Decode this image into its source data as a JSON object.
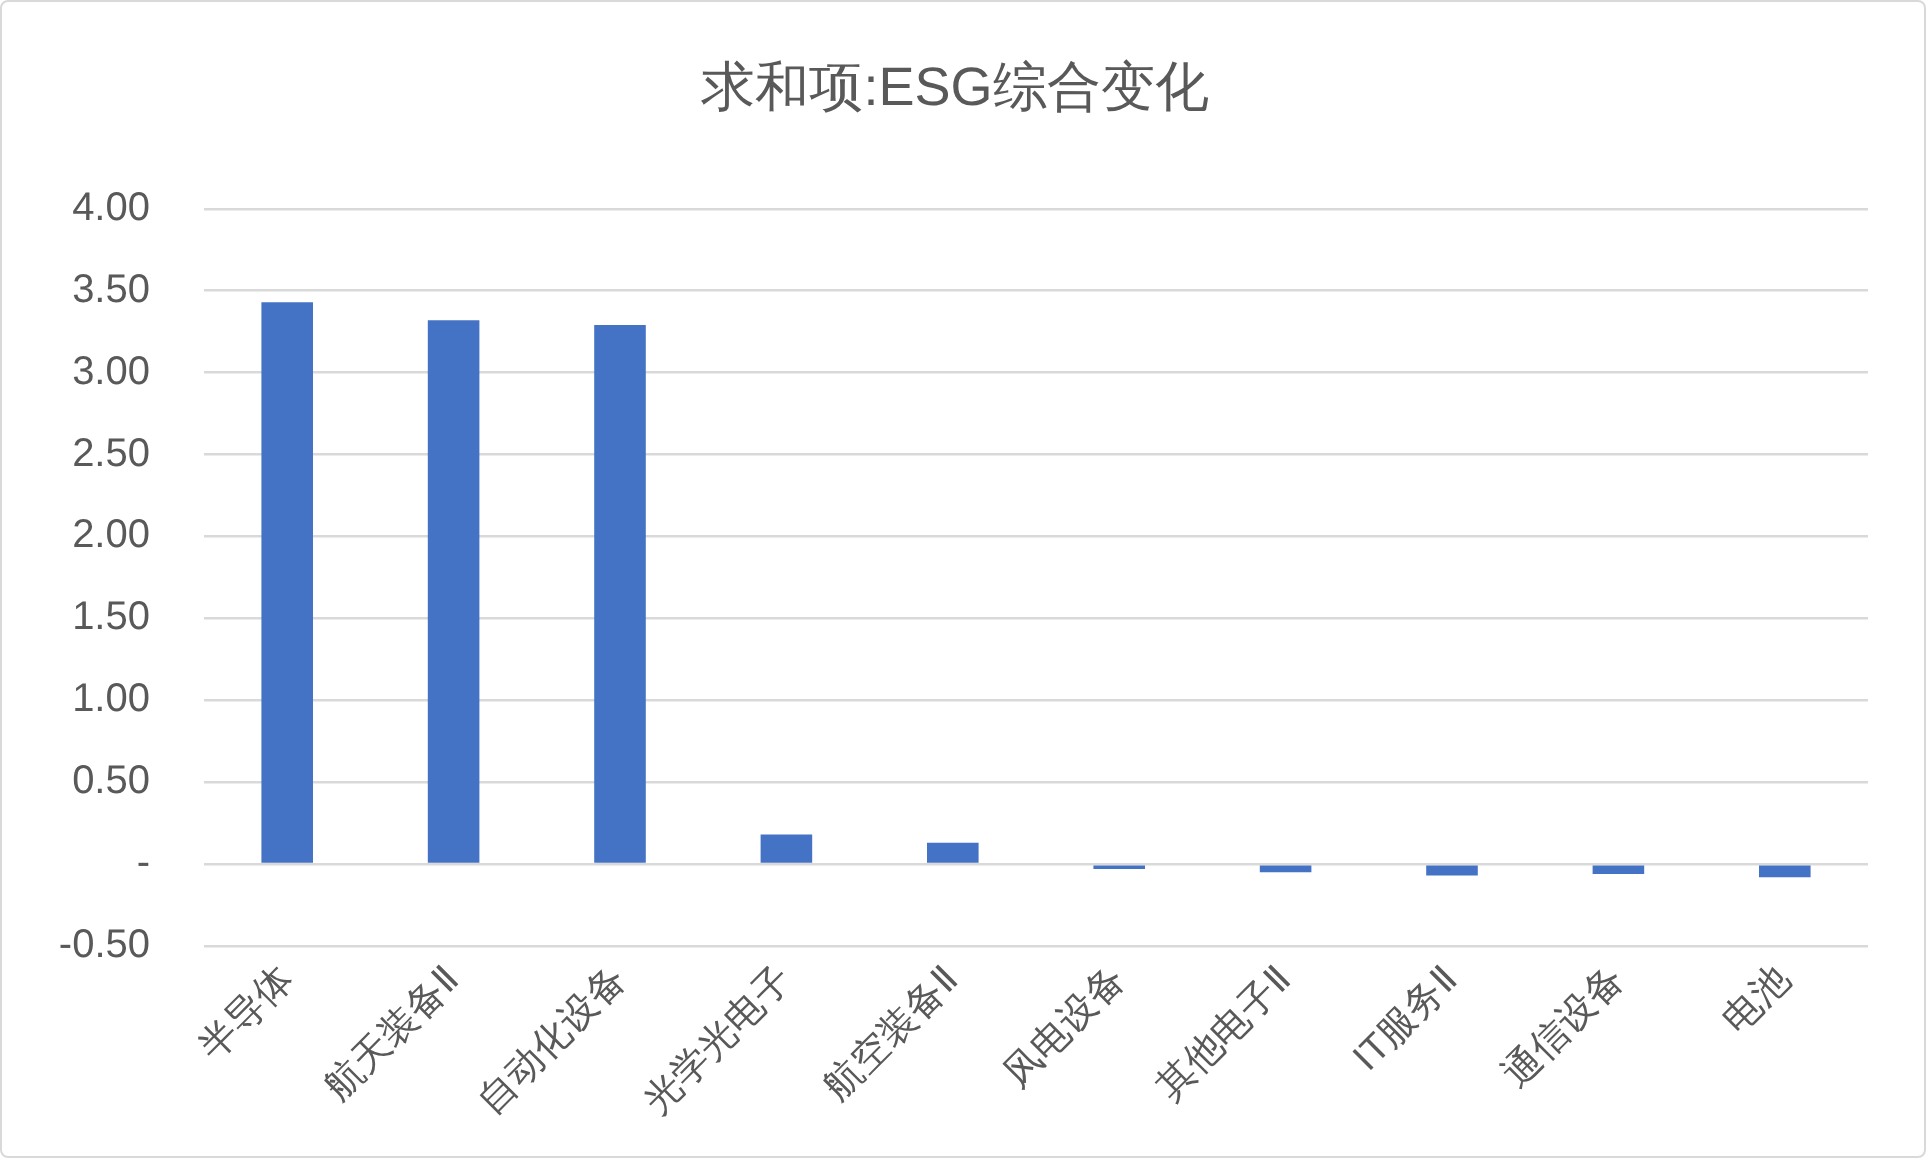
{
  "chart_data": {
    "type": "bar",
    "title": "求和项:ESG综合变化",
    "categories": [
      "半导体",
      "航天装备Ⅱ",
      "自动化设备",
      "光学光电子",
      "航空装备Ⅱ",
      "风电设备",
      "其他电子Ⅱ",
      "IT服务Ⅱ",
      "通信设备",
      "电池"
    ],
    "values": [
      3.43,
      3.32,
      3.29,
      0.18,
      0.13,
      -0.03,
      -0.05,
      -0.07,
      -0.06,
      -0.08
    ],
    "color": "#4472c4",
    "ylim": [
      -0.5,
      4
    ],
    "yticks": [
      {
        "value": -0.5,
        "label": "-0.50"
      },
      {
        "value": 0,
        "label": "-"
      },
      {
        "value": 0.5,
        "label": "0.50"
      },
      {
        "value": 1,
        "label": "1.00"
      },
      {
        "value": 1.5,
        "label": "1.50"
      },
      {
        "value": 2,
        "label": "2.00"
      },
      {
        "value": 2.5,
        "label": "2.50"
      },
      {
        "value": 3,
        "label": "3.00"
      },
      {
        "value": 3.5,
        "label": "3.50"
      },
      {
        "value": 4,
        "label": "4.00"
      }
    ],
    "grid": "y"
  }
}
